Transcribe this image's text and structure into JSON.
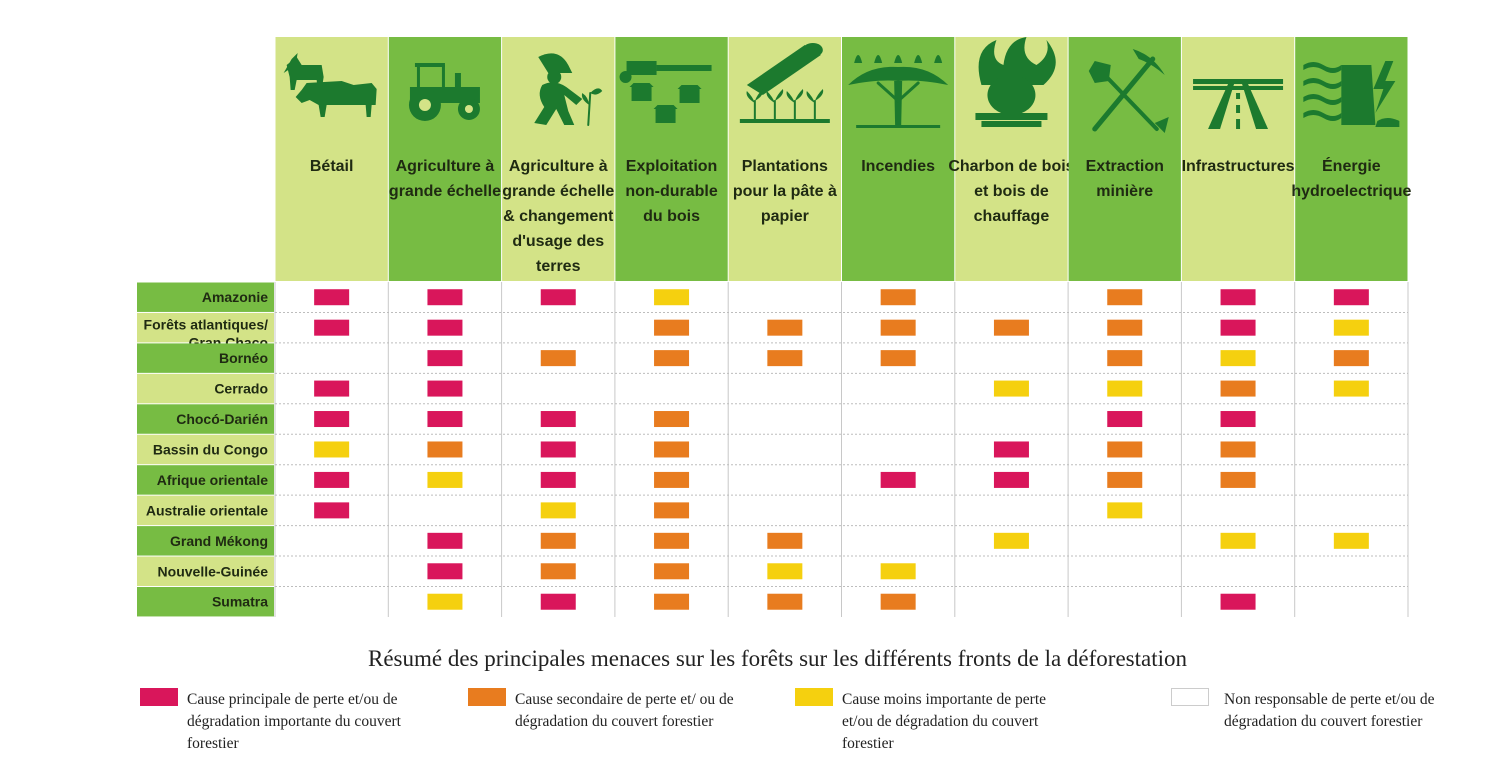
{
  "colors": {
    "header_light": "#d3e387",
    "header_dark": "#77bc43",
    "icon": "#1c7a2e",
    "main": "#d9165b",
    "secondary": "#e87c1f",
    "minor": "#f5d00f",
    "none": "#ffffff"
  },
  "chart_data": {
    "type": "table",
    "title": "Résumé des principales menaces sur les forêts sur les différents fronts de la déforestation",
    "columns": [
      {
        "label": "Bétail",
        "icon": "livestock-icon"
      },
      {
        "label": "Agriculture à grande échelle",
        "icon": "tractor-icon"
      },
      {
        "label": "Agriculture à grande échelle & changement d'usage des terres",
        "icon": "farmer-planting-icon"
      },
      {
        "label": "Exploitation non-durable du bois",
        "icon": "chainsaw-stumps-icon"
      },
      {
        "label": "Plantations pour la pâte à papier",
        "icon": "paper-roll-seedlings-icon"
      },
      {
        "label": "Incendies",
        "icon": "acacia-tree-icon"
      },
      {
        "label": "Charbon de bois et bois de chauffage",
        "icon": "cooking-pot-fire-icon"
      },
      {
        "label": "Extraction minière",
        "icon": "pickaxe-shovel-icon"
      },
      {
        "label": "Infrastructures",
        "icon": "highway-icon"
      },
      {
        "label": "Énergie hydroelectrique",
        "icon": "dam-lightning-icon"
      }
    ],
    "column_lines": [
      [
        "Bétail"
      ],
      [
        "Agriculture à",
        "grande échelle"
      ],
      [
        "Agriculture à",
        "grande échelle",
        "& changement",
        "d'usage des",
        "terres"
      ],
      [
        "Exploitation",
        "non-durable",
        "du bois"
      ],
      [
        "Plantations",
        "pour la pâte à",
        "papier"
      ],
      [
        "Incendies"
      ],
      [
        "Charbon de bois",
        "et bois de",
        "chauffage"
      ],
      [
        "Extraction",
        "minière"
      ],
      [
        "Infrastructures"
      ],
      [
        "Énergie",
        "hydroelectrique"
      ]
    ],
    "rows": [
      {
        "label": "Amazonie",
        "lines": [
          "Amazonie"
        ],
        "values": [
          "main",
          "main",
          "main",
          "minor",
          "none",
          "secondary",
          "none",
          "secondary",
          "main",
          "main"
        ]
      },
      {
        "label": "Forêts atlantiques/ Gran Chaco",
        "lines": [
          "Forêts atlantiques/",
          "Gran Chaco"
        ],
        "values": [
          "main",
          "main",
          "none",
          "secondary",
          "secondary",
          "secondary",
          "secondary",
          "secondary",
          "main",
          "minor"
        ]
      },
      {
        "label": "Bornéo",
        "lines": [
          "Bornéo"
        ],
        "values": [
          "none",
          "main",
          "secondary",
          "secondary",
          "secondary",
          "secondary",
          "none",
          "secondary",
          "minor",
          "secondary"
        ]
      },
      {
        "label": "Cerrado",
        "lines": [
          "Cerrado"
        ],
        "values": [
          "main",
          "main",
          "none",
          "none",
          "none",
          "none",
          "minor",
          "minor",
          "secondary",
          "minor"
        ]
      },
      {
        "label": "Chocó-Darién",
        "lines": [
          "Chocó-Darién"
        ],
        "values": [
          "main",
          "main",
          "main",
          "secondary",
          "none",
          "none",
          "none",
          "main",
          "main",
          "none"
        ]
      },
      {
        "label": "Bassin du Congo",
        "lines": [
          "Bassin du Congo"
        ],
        "values": [
          "minor",
          "secondary",
          "main",
          "secondary",
          "none",
          "none",
          "main",
          "secondary",
          "secondary",
          "none"
        ]
      },
      {
        "label": "Afrique orientale",
        "lines": [
          "Afrique orientale"
        ],
        "values": [
          "main",
          "minor",
          "main",
          "secondary",
          "none",
          "main",
          "main",
          "secondary",
          "secondary",
          "none"
        ]
      },
      {
        "label": "Australie orientale",
        "lines": [
          "Australie orientale"
        ],
        "values": [
          "main",
          "none",
          "minor",
          "secondary",
          "none",
          "none",
          "none",
          "minor",
          "none",
          "none"
        ]
      },
      {
        "label": "Grand Mékong",
        "lines": [
          "Grand Mékong"
        ],
        "values": [
          "none",
          "main",
          "secondary",
          "secondary",
          "secondary",
          "none",
          "minor",
          "none",
          "minor",
          "minor"
        ]
      },
      {
        "label": "Nouvelle-Guinée",
        "lines": [
          "Nouvelle-Guinée"
        ],
        "values": [
          "none",
          "main",
          "secondary",
          "secondary",
          "minor",
          "minor",
          "none",
          "none",
          "none",
          "none"
        ]
      },
      {
        "label": "Sumatra",
        "lines": [
          "Sumatra"
        ],
        "values": [
          "none",
          "minor",
          "main",
          "secondary",
          "secondary",
          "secondary",
          "none",
          "none",
          "main",
          "none"
        ]
      }
    ],
    "legend": [
      {
        "key": "main",
        "label": "Cause principale de perte et/ou de dégradation importante du couvert forestier"
      },
      {
        "key": "secondary",
        "label": "Cause secondaire de perte et/ ou de dégradation du couvert forestier"
      },
      {
        "key": "minor",
        "label": "Cause moins importante de perte et/ou de dégradation du couvert forestier"
      },
      {
        "key": "none",
        "label": "Non responsable de perte et/ou de dégradation du couvert forestier"
      }
    ]
  }
}
